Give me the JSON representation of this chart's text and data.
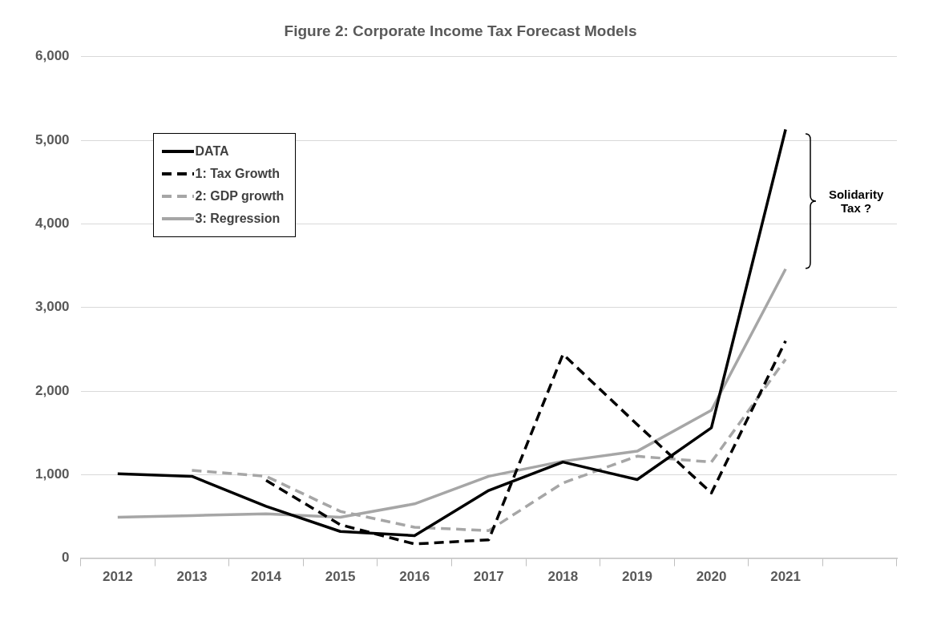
{
  "chart_data": {
    "type": "line",
    "title": "Figure 2: Corporate Income Tax Forecast Models",
    "categories": [
      "2012",
      "2013",
      "2014",
      "2015",
      "2016",
      "2017",
      "2018",
      "2019",
      "2020",
      "2021",
      null
    ],
    "series": [
      {
        "name": "DATA",
        "color": "#000000",
        "line_style": "solid",
        "values": [
          1010,
          980,
          620,
          320,
          270,
          810,
          1150,
          940,
          1560,
          5130,
          null
        ]
      },
      {
        "name": "1: Tax Growth",
        "color": "#000000",
        "line_style": "dashed",
        "values": [
          null,
          null,
          930,
          400,
          170,
          220,
          2440,
          1600,
          780,
          2600,
          null
        ]
      },
      {
        "name": "2: GDP growth",
        "color": "#a6a6a6",
        "line_style": "dashed",
        "values": [
          null,
          1050,
          980,
          560,
          370,
          330,
          900,
          1220,
          1150,
          2380,
          null
        ]
      },
      {
        "name": "3: Regression",
        "color": "#a6a6a6",
        "line_style": "solid",
        "values": [
          490,
          510,
          530,
          490,
          650,
          980,
          1160,
          1280,
          1770,
          3460,
          null
        ]
      }
    ],
    "ylim": [
      0,
      6000
    ],
    "yticks": [
      0,
      {
        "value": 1000,
        "label": "1,000"
      },
      {
        "value": 2000,
        "label": "2,000"
      },
      {
        "value": 3000,
        "label": "3,000"
      },
      {
        "value": 4000,
        "label": "4,000"
      },
      {
        "value": 5000,
        "label": "5,000"
      },
      {
        "value": 6000,
        "label": "6,000"
      }
    ],
    "grid": "y",
    "legend": "top left",
    "marker": "none",
    "annotations": [
      "Solidarity Tax ?"
    ]
  }
}
